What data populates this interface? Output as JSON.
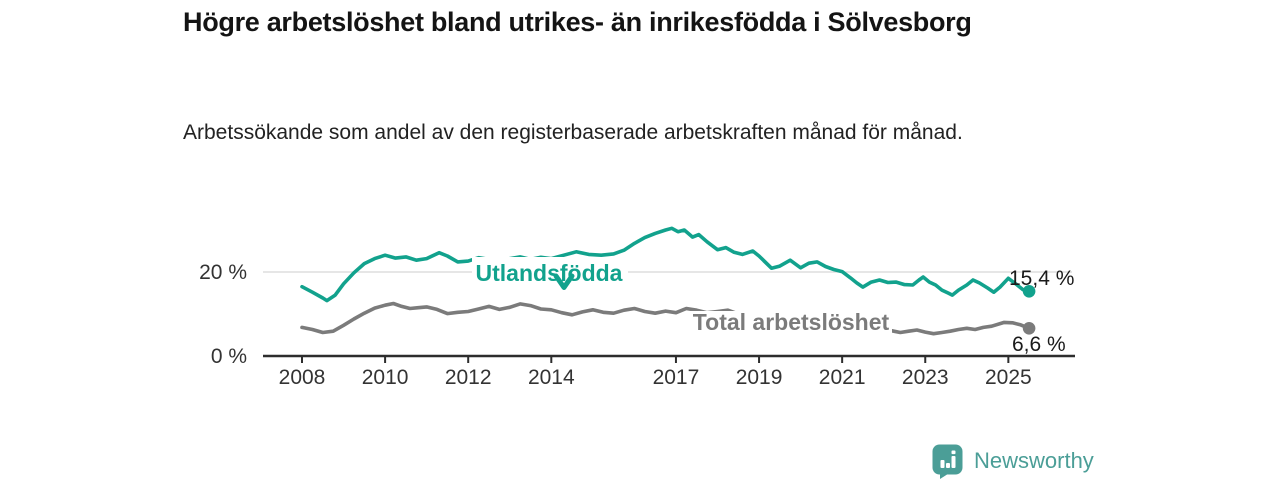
{
  "footer": {
    "brand": "Newsworthy",
    "brand_color": "#4b9e97",
    "logo_icon": "bar-chart-speech-bubble-icon"
  },
  "chart_data": {
    "type": "line",
    "title": "Högre arbetslöshet bland utrikes- än inrikesfödda i Sölvesborg",
    "subtitle": "Arbetssökande som andel av den registerbaserade arbetskraften månad för månad.",
    "x_axis": {
      "ticks": [
        2008,
        2010,
        2012,
        2014,
        2017,
        2019,
        2021,
        2023,
        2025
      ],
      "tick_labels": [
        "2008",
        "2010",
        "2012",
        "2014",
        "2017",
        "2019",
        "2021",
        "2023",
        "2025"
      ],
      "range_years": [
        2008,
        2025.5
      ]
    },
    "y_axis": {
      "unit": "%",
      "range": [
        0,
        32
      ],
      "ticks": [
        {
          "value": 0,
          "label": "0 %"
        },
        {
          "value": 20,
          "label": "20 %"
        }
      ]
    },
    "grid": "horizontal-line-at-20-only",
    "legend_position": "inline-labels-on-lines",
    "series": [
      {
        "name": "Utlandsfödda",
        "color": "#12a28d",
        "end_label": "15,4 %",
        "end_value": 15.4,
        "points": [
          [
            2008.0,
            16.5
          ],
          [
            2008.25,
            15.2
          ],
          [
            2008.5,
            13.8
          ],
          [
            2008.6,
            13.2
          ],
          [
            2008.8,
            14.5
          ],
          [
            2009.0,
            17.2
          ],
          [
            2009.25,
            19.8
          ],
          [
            2009.5,
            22.0
          ],
          [
            2009.75,
            23.2
          ],
          [
            2010.0,
            24.0
          ],
          [
            2010.25,
            23.3
          ],
          [
            2010.5,
            23.6
          ],
          [
            2010.75,
            22.8
          ],
          [
            2011.0,
            23.2
          ],
          [
            2011.3,
            24.6
          ],
          [
            2011.5,
            23.8
          ],
          [
            2011.75,
            22.4
          ],
          [
            2012.0,
            22.6
          ],
          [
            2012.25,
            23.4
          ],
          [
            2012.5,
            23.0
          ],
          [
            2012.75,
            22.6
          ],
          [
            2013.0,
            23.2
          ],
          [
            2013.25,
            23.6
          ],
          [
            2013.5,
            23.0
          ],
          [
            2013.75,
            23.5
          ],
          [
            2014.0,
            23.2
          ],
          [
            2014.3,
            24.0
          ],
          [
            2014.6,
            24.8
          ],
          [
            2014.9,
            24.2
          ],
          [
            2015.2,
            24.0
          ],
          [
            2015.5,
            24.3
          ],
          [
            2015.75,
            25.2
          ],
          [
            2016.0,
            26.8
          ],
          [
            2016.25,
            28.2
          ],
          [
            2016.5,
            29.2
          ],
          [
            2016.75,
            30.0
          ],
          [
            2016.9,
            30.4
          ],
          [
            2017.05,
            29.6
          ],
          [
            2017.2,
            30.0
          ],
          [
            2017.4,
            28.3
          ],
          [
            2017.55,
            28.9
          ],
          [
            2017.75,
            27.2
          ],
          [
            2018.0,
            25.3
          ],
          [
            2018.2,
            25.8
          ],
          [
            2018.4,
            24.7
          ],
          [
            2018.6,
            24.2
          ],
          [
            2018.85,
            25.0
          ],
          [
            2019.0,
            23.8
          ],
          [
            2019.3,
            20.9
          ],
          [
            2019.5,
            21.4
          ],
          [
            2019.75,
            22.8
          ],
          [
            2020.0,
            21.0
          ],
          [
            2020.2,
            22.1
          ],
          [
            2020.4,
            22.4
          ],
          [
            2020.6,
            21.3
          ],
          [
            2020.8,
            20.6
          ],
          [
            2021.0,
            20.1
          ],
          [
            2021.2,
            18.6
          ],
          [
            2021.35,
            17.4
          ],
          [
            2021.5,
            16.4
          ],
          [
            2021.7,
            17.6
          ],
          [
            2021.9,
            18.1
          ],
          [
            2022.1,
            17.5
          ],
          [
            2022.3,
            17.6
          ],
          [
            2022.5,
            17.0
          ],
          [
            2022.7,
            16.9
          ],
          [
            2022.85,
            18.1
          ],
          [
            2022.95,
            18.8
          ],
          [
            2023.1,
            17.6
          ],
          [
            2023.25,
            16.9
          ],
          [
            2023.4,
            15.7
          ],
          [
            2023.55,
            15.0
          ],
          [
            2023.65,
            14.5
          ],
          [
            2023.8,
            15.7
          ],
          [
            2024.0,
            16.9
          ],
          [
            2024.15,
            18.1
          ],
          [
            2024.3,
            17.4
          ],
          [
            2024.5,
            16.2
          ],
          [
            2024.65,
            15.2
          ],
          [
            2024.8,
            16.4
          ],
          [
            2025.0,
            18.5
          ],
          [
            2025.2,
            17.0
          ],
          [
            2025.35,
            15.8
          ],
          [
            2025.5,
            15.4
          ]
        ]
      },
      {
        "name": "Total arbetslöshet",
        "color": "#7b7b7b",
        "end_label": "6,6 %",
        "end_value": 6.6,
        "points": [
          [
            2008.0,
            6.8
          ],
          [
            2008.25,
            6.3
          ],
          [
            2008.5,
            5.6
          ],
          [
            2008.75,
            5.9
          ],
          [
            2009.0,
            7.3
          ],
          [
            2009.25,
            8.8
          ],
          [
            2009.5,
            10.2
          ],
          [
            2009.75,
            11.4
          ],
          [
            2010.0,
            12.1
          ],
          [
            2010.2,
            12.5
          ],
          [
            2010.4,
            11.8
          ],
          [
            2010.6,
            11.3
          ],
          [
            2010.8,
            11.5
          ],
          [
            2011.0,
            11.7
          ],
          [
            2011.25,
            11.1
          ],
          [
            2011.5,
            10.1
          ],
          [
            2011.75,
            10.4
          ],
          [
            2012.0,
            10.6
          ],
          [
            2012.25,
            11.2
          ],
          [
            2012.5,
            11.8
          ],
          [
            2012.75,
            11.1
          ],
          [
            2013.0,
            11.6
          ],
          [
            2013.25,
            12.4
          ],
          [
            2013.5,
            12.0
          ],
          [
            2013.75,
            11.2
          ],
          [
            2014.0,
            11.0
          ],
          [
            2014.25,
            10.3
          ],
          [
            2014.5,
            9.8
          ],
          [
            2014.75,
            10.5
          ],
          [
            2015.0,
            11.0
          ],
          [
            2015.25,
            10.4
          ],
          [
            2015.5,
            10.2
          ],
          [
            2015.75,
            10.9
          ],
          [
            2016.0,
            11.3
          ],
          [
            2016.25,
            10.6
          ],
          [
            2016.5,
            10.2
          ],
          [
            2016.75,
            10.7
          ],
          [
            2017.0,
            10.3
          ],
          [
            2017.25,
            11.3
          ],
          [
            2017.5,
            10.9
          ],
          [
            2017.75,
            10.3
          ],
          [
            2018.0,
            10.6
          ],
          [
            2018.25,
            10.9
          ],
          [
            2018.5,
            10.0
          ],
          [
            2018.75,
            9.7
          ],
          [
            2019.0,
            9.5
          ],
          [
            2019.5,
            9.2
          ],
          [
            2020.0,
            9.4
          ],
          [
            2020.5,
            9.6
          ],
          [
            2021.0,
            8.8
          ],
          [
            2021.5,
            7.8
          ],
          [
            2022.0,
            6.6
          ],
          [
            2022.2,
            6.0
          ],
          [
            2022.4,
            5.6
          ],
          [
            2022.6,
            5.9
          ],
          [
            2022.8,
            6.2
          ],
          [
            2023.0,
            5.7
          ],
          [
            2023.2,
            5.3
          ],
          [
            2023.4,
            5.6
          ],
          [
            2023.6,
            5.9
          ],
          [
            2023.8,
            6.3
          ],
          [
            2024.0,
            6.6
          ],
          [
            2024.2,
            6.3
          ],
          [
            2024.4,
            6.8
          ],
          [
            2024.6,
            7.1
          ],
          [
            2024.9,
            8.0
          ],
          [
            2025.1,
            7.9
          ],
          [
            2025.3,
            7.4
          ],
          [
            2025.5,
            6.6
          ]
        ]
      }
    ]
  }
}
